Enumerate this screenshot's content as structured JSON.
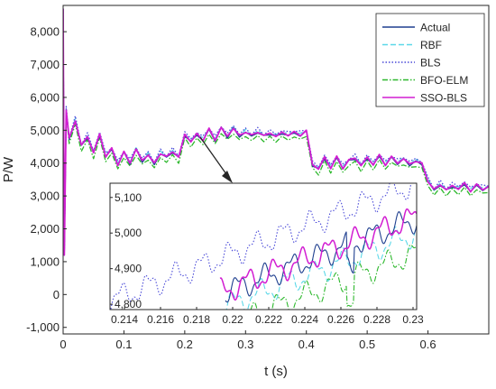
{
  "chart_data": {
    "type": "line",
    "title": "",
    "xlabel": "t (s)",
    "ylabel": "P/W",
    "xlim": [
      0,
      0.7
    ],
    "ylim": [
      -1200,
      8800
    ],
    "grid": false,
    "legend_position": "top-right",
    "x_ticks": [
      0,
      0.1,
      0.2,
      0.3,
      0.4,
      0.5,
      0.6
    ],
    "x_tick_labels": [
      "0",
      "0.1",
      "0.2",
      "0.3",
      "0.4",
      "0.5",
      "0.6"
    ],
    "y_ticks": [
      -1000,
      0,
      1000,
      2000,
      3000,
      4000,
      5000,
      6000,
      7000,
      8000
    ],
    "y_tick_labels": [
      "-1,000",
      "0",
      "1,000",
      "2,000",
      "3,000",
      "4,000",
      "5,000",
      "6,000",
      "7,000",
      "8,000"
    ],
    "series": [
      {
        "name": "Actual",
        "color": "#1f3f8f",
        "dash": "solid"
      },
      {
        "name": "RBF",
        "color": "#5bd8e8",
        "dash": "dashed"
      },
      {
        "name": "BLS",
        "color": "#4a4ad8",
        "dash": "dotted"
      },
      {
        "name": "BFO-ELM",
        "color": "#2db82d",
        "dash": "dashdot"
      },
      {
        "name": "SSO-BLS",
        "color": "#d21ed2",
        "dash": "solid"
      }
    ],
    "x": [
      0,
      0.002,
      0.005,
      0.01,
      0.02,
      0.03,
      0.04,
      0.05,
      0.06,
      0.07,
      0.08,
      0.09,
      0.1,
      0.11,
      0.12,
      0.13,
      0.14,
      0.15,
      0.16,
      0.17,
      0.18,
      0.19,
      0.2,
      0.21,
      0.22,
      0.23,
      0.24,
      0.25,
      0.26,
      0.27,
      0.28,
      0.29,
      0.3,
      0.31,
      0.32,
      0.33,
      0.34,
      0.35,
      0.36,
      0.37,
      0.38,
      0.39,
      0.4,
      0.41,
      0.42,
      0.43,
      0.44,
      0.45,
      0.46,
      0.47,
      0.48,
      0.49,
      0.5,
      0.51,
      0.52,
      0.53,
      0.54,
      0.55,
      0.56,
      0.57,
      0.58,
      0.59,
      0.6,
      0.61,
      0.62,
      0.63,
      0.64,
      0.65,
      0.66,
      0.67,
      0.68,
      0.69,
      0.7
    ],
    "y_actual": [
      8700,
      1200,
      5600,
      4700,
      5300,
      4500,
      4800,
      4300,
      4850,
      4200,
      4400,
      3950,
      4300,
      4000,
      4400,
      4050,
      4250,
      3950,
      4300,
      4150,
      4350,
      4150,
      4850,
      4650,
      4850,
      4700,
      5000,
      4700,
      5050,
      4800,
      5050,
      4800,
      4950,
      4800,
      4950,
      4800,
      4900,
      4800,
      4900,
      4850,
      4900,
      4850,
      4950,
      3950,
      3800,
      4150,
      3850,
      4150,
      3850,
      4050,
      4150,
      3900,
      4150,
      3950,
      4200,
      3950,
      4150,
      4000,
      4100,
      3950,
      4050,
      3950,
      3450,
      3150,
      3350,
      3150,
      3300,
      3200,
      3350,
      3150,
      3300,
      3200,
      3250
    ],
    "inset": {
      "xlim": [
        0.2132,
        0.2302
      ],
      "ylim": [
        4785,
        5140
      ],
      "x_ticks": [
        0.214,
        0.216,
        0.218,
        0.22,
        0.222,
        0.224,
        0.226,
        0.228,
        0.23
      ],
      "x_tick_labels": [
        "0.214",
        "0.216",
        "0.218",
        "0.22",
        "0.222",
        "0.224",
        "0.226",
        "0.228",
        "0.23"
      ],
      "y_ticks": [
        4800,
        4900,
        5000,
        5100
      ],
      "y_tick_labels": [
        "4,800",
        "4,900",
        "5,000",
        "5,100"
      ]
    }
  }
}
